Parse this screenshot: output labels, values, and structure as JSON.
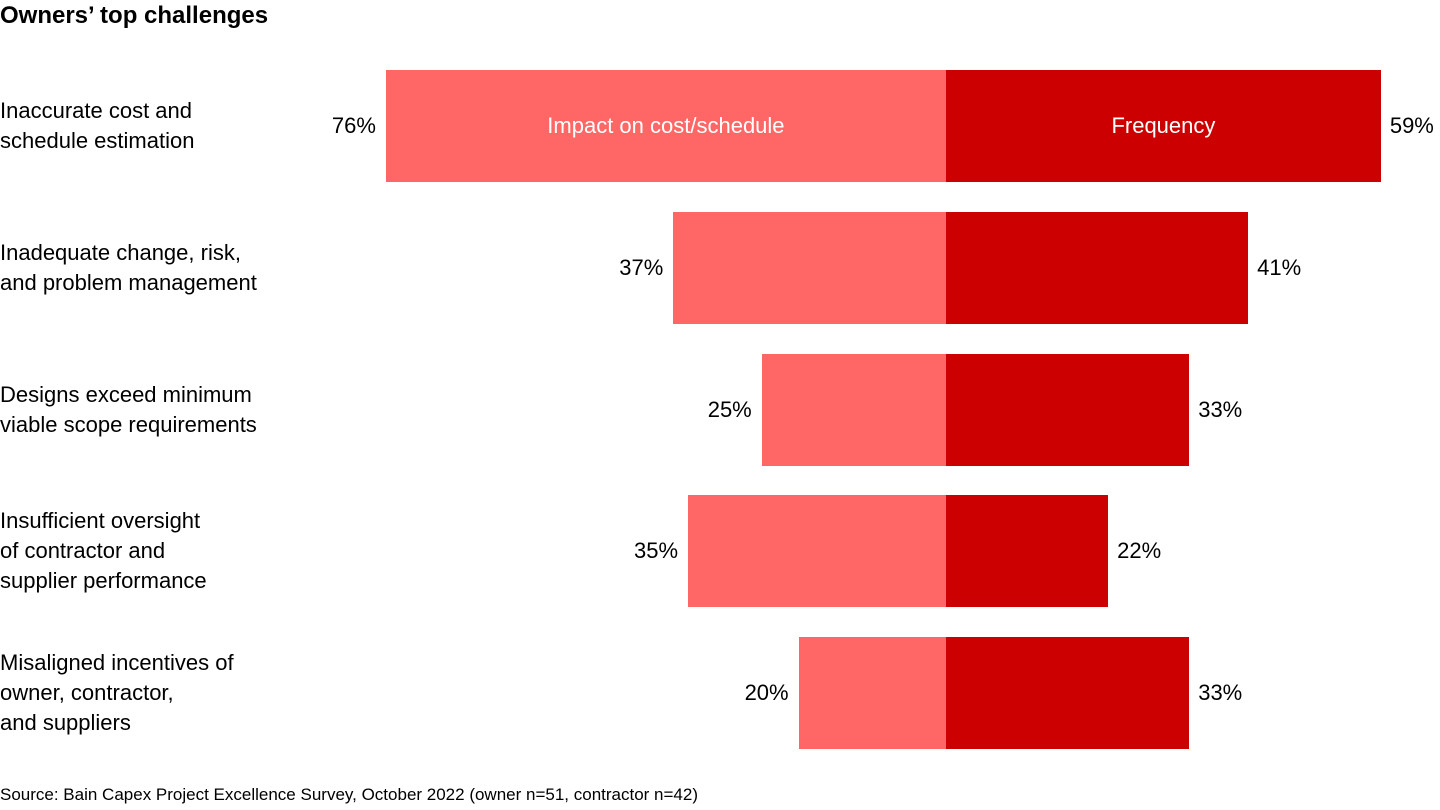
{
  "chart_data": {
    "type": "bar",
    "orientation": "horizontal-diverging",
    "title": "Owners’ top challenges",
    "categories": [
      [
        "Inaccurate cost and",
        "schedule estimation"
      ],
      [
        "Inadequate change, risk,",
        "and problem management"
      ],
      [
        "Designs exceed minimum",
        "viable scope requirements"
      ],
      [
        "Insufficient oversight",
        "of contractor and",
        "supplier performance"
      ],
      [
        "Misaligned incentives of",
        "owner, contractor,",
        "and suppliers"
      ]
    ],
    "series": [
      {
        "name": "Impact on cost/schedule",
        "side": "left",
        "color": "#FF6666",
        "values": [
          76,
          37,
          25,
          35,
          20
        ]
      },
      {
        "name": "Frequency",
        "side": "right",
        "color": "#CC0000",
        "values": [
          59,
          41,
          33,
          22,
          33
        ]
      }
    ],
    "unit": "%",
    "grid": false,
    "legend": "inside first bar"
  },
  "source": "Source: Bain Capex Project Excellence Survey, October 2022 (owner n=51, contractor n=42)"
}
